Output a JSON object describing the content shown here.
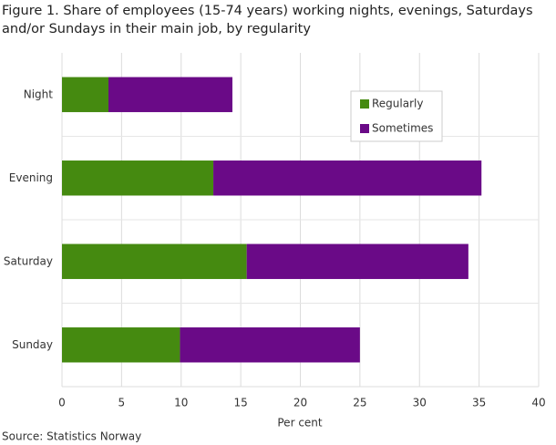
{
  "chart_data": {
    "type": "stacked-barh",
    "title": "Figure 1. Share of employees (15-74 years) working nights, evenings, Saturdays and/or Sundays in their main job, by regularity",
    "categories": [
      "Night",
      "Evening",
      "Saturday",
      "Sunday"
    ],
    "series": [
      {
        "name": "Regularly",
        "color": "#458a10",
        "values": [
          3.9,
          12.7,
          15.5,
          9.9
        ]
      },
      {
        "name": "Sometimes",
        "color": "#6a0a87",
        "values": [
          10.4,
          22.5,
          18.6,
          15.1
        ]
      }
    ],
    "xlabel": "Per cent",
    "xlim": [
      0,
      40
    ],
    "xticks": [
      0,
      5,
      10,
      15,
      20,
      25,
      30,
      35,
      40
    ],
    "grid": true,
    "legend": "upper right",
    "source": "Source: Statistics Norway"
  }
}
